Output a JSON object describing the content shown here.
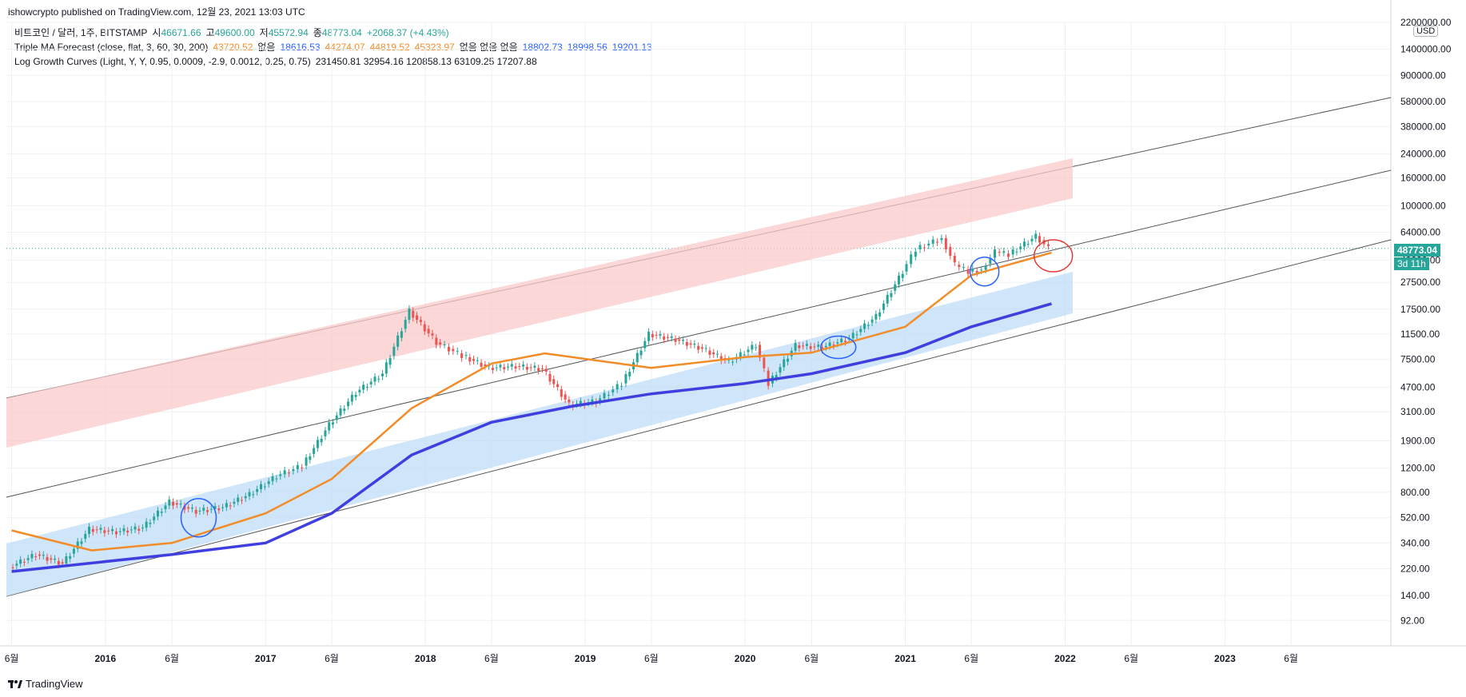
{
  "header": {
    "text": "ishowcrypto published on TradingView.com, 12월 23, 2021 13:03 UTC"
  },
  "legend": {
    "row1": {
      "symbol": "비트코인 / 달러, 1주, BITSTAMP",
      "open_label": "시",
      "open": "46671.66",
      "high_label": "고",
      "high": "49600.00",
      "low_label": "저",
      "low": "45572.94",
      "close_label": "종",
      "close": "48773.04",
      "change": "+2068.37 (+4.43%)"
    },
    "row2": {
      "name": "Triple MA Forecast (close, flat, 3, 60, 30, 200)",
      "v1": "43720.52",
      "na1": "없음",
      "v2": "18616.53",
      "v3": "44274.07",
      "v4": "44819.52",
      "v5": "45323.97",
      "na2": "없음 없음 없음",
      "v6": "18802.73",
      "v7": "18998.56",
      "v8": "19201.13"
    },
    "row3": {
      "name": "Log Growth Curves (Light, Y, Y, 0.95, 0.0009, -2.9, 0.0012, 0.25, 0.75)",
      "values": "231450.81 32954.16 120858.13 63109.25 17207.88"
    }
  },
  "price_axis": {
    "currency": "USD",
    "last_price": "48773.04",
    "countdown": "3d 11h"
  },
  "brand": {
    "name": "TradingView"
  },
  "colors": {
    "up": "#26a69a",
    "down": "#ef5350",
    "ma_fast": "#f28c28",
    "ma_slow": "#3f3fe0",
    "band_upper": "#f9c9c9",
    "band_lower": "#bfdcf7",
    "circle_blue": "#2962ff",
    "circle_red": "#e53935"
  },
  "chart_data": {
    "type": "line",
    "title": "비트코인 / 달러, 1주, BITSTAMP",
    "y_scale": "log",
    "ylim": [
      60,
      2200000
    ],
    "y_ticks": [
      2200000,
      1400000,
      900000,
      580000,
      380000,
      240000,
      160000,
      100000,
      64000,
      40000,
      27500,
      17500,
      11500,
      7500,
      4700,
      3100,
      1900,
      1200,
      800,
      520,
      340,
      220,
      140,
      92
    ],
    "y_tick_labels": [
      "2200000.00",
      "1400000.00",
      "900000.00",
      "580000.00",
      "380000.00",
      "240000.00",
      "160000.00",
      "100000.00",
      "64000.00",
      "40000.00",
      "27500.00",
      "17500.00",
      "11500.00",
      "7500.00",
      "4700.00",
      "3100.00",
      "1900.00",
      "1200.00",
      "800.00",
      "520.00",
      "340.00",
      "220.00",
      "140.00",
      "92.00"
    ],
    "x_ticks": [
      "6월",
      "2016",
      "6월",
      "2017",
      "6월",
      "2018",
      "6월",
      "2019",
      "6월",
      "2020",
      "6월",
      "2021",
      "6월",
      "2022",
      "6월",
      "2023",
      "6월"
    ],
    "x_tick_dates": [
      "2015-06-01",
      "2016-01-01",
      "2016-06-01",
      "2017-01-01",
      "2017-06-01",
      "2018-01-01",
      "2018-06-01",
      "2019-01-01",
      "2019-06-01",
      "2020-01-01",
      "2020-06-01",
      "2021-01-01",
      "2021-06-01",
      "2022-01-01",
      "2022-06-01",
      "2023-01-01",
      "2023-06-01"
    ],
    "xlim": [
      "2015-05-20",
      "2024-01-15"
    ],
    "series": [
      {
        "name": "비트코인 / 달러",
        "x": [
          "2015-06",
          "2015-08",
          "2015-10",
          "2015-12",
          "2016-02",
          "2016-04",
          "2016-06",
          "2016-08",
          "2016-10",
          "2016-12",
          "2017-02",
          "2017-04",
          "2017-06",
          "2017-08",
          "2017-10",
          "2017-12",
          "2018-02",
          "2018-04",
          "2018-06",
          "2018-08",
          "2018-10",
          "2018-12",
          "2019-02",
          "2019-04",
          "2019-06",
          "2019-08",
          "2019-10",
          "2019-12",
          "2020-02",
          "2020-03",
          "2020-05",
          "2020-07",
          "2020-09",
          "2020-11",
          "2021-01",
          "2021-02",
          "2021-04",
          "2021-05",
          "2021-06",
          "2021-07",
          "2021-08",
          "2021-09",
          "2021-11",
          "2021-12"
        ],
        "values": [
          225,
          280,
          240,
          430,
          410,
          440,
          680,
          580,
          620,
          770,
          1050,
          1250,
          2500,
          4300,
          5900,
          17000,
          10000,
          8000,
          6500,
          6700,
          6400,
          3500,
          3700,
          5000,
          11500,
          10500,
          9000,
          7200,
          9600,
          5000,
          9500,
          9200,
          10700,
          15500,
          33000,
          48000,
          58000,
          37000,
          33000,
          34000,
          46000,
          44000,
          60000,
          48773
        ]
      },
      {
        "name": "MA 60",
        "x": [
          "2015-06",
          "2015-12",
          "2016-06",
          "2017-01",
          "2017-06",
          "2017-12",
          "2018-06",
          "2018-10",
          "2019-06",
          "2020-01",
          "2020-06",
          "2021-01",
          "2021-06",
          "2021-12"
        ],
        "values": [
          420,
          300,
          340,
          560,
          1000,
          3300,
          7000,
          8300,
          6500,
          7800,
          8400,
          13000,
          31000,
          45324
        ]
      },
      {
        "name": "MA 200",
        "x": [
          "2015-06",
          "2016-06",
          "2017-01",
          "2017-06",
          "2017-12",
          "2018-06",
          "2018-12",
          "2019-06",
          "2020-01",
          "2020-06",
          "2021-01",
          "2021-06",
          "2021-12"
        ],
        "values": [
          210,
          280,
          340,
          560,
          1500,
          2600,
          3400,
          4200,
          5000,
          5900,
          8400,
          13000,
          19201
        ]
      }
    ]
  }
}
